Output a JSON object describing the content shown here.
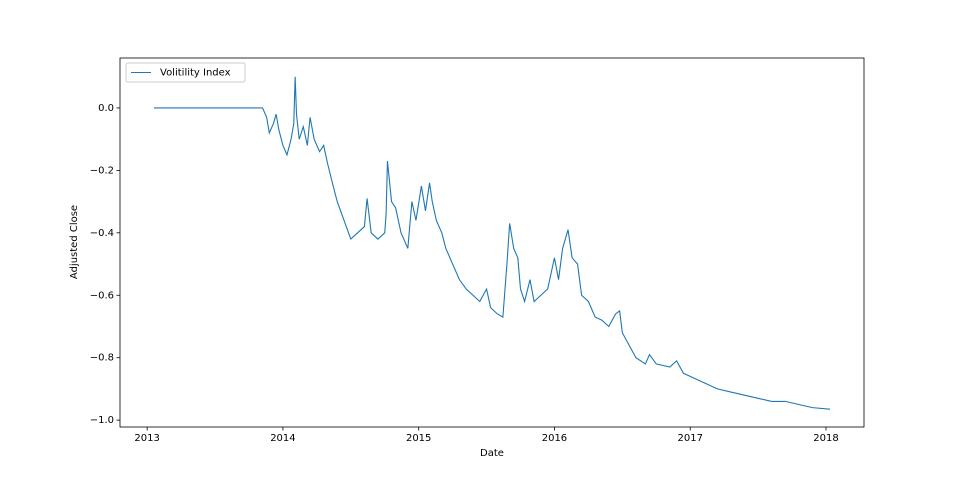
{
  "chart_data": {
    "type": "line",
    "x_label": "Date",
    "y_label": "Adjusted Close",
    "legend": "upper left",
    "x": [
      2013.05,
      2013.85,
      2013.88,
      2013.9,
      2013.93,
      2013.95,
      2013.97,
      2014.0,
      2014.03,
      2014.06,
      2014.08,
      2014.09,
      2014.1,
      2014.12,
      2014.15,
      2014.18,
      2014.2,
      2014.23,
      2014.27,
      2014.3,
      2014.33,
      2014.37,
      2014.4,
      2014.45,
      2014.5,
      2014.55,
      2014.6,
      2014.62,
      2014.65,
      2014.7,
      2014.75,
      2014.76,
      2014.77,
      2014.8,
      2014.83,
      2014.87,
      2014.92,
      2014.95,
      2014.98,
      2015.02,
      2015.05,
      2015.08,
      2015.1,
      2015.13,
      2015.17,
      2015.2,
      2015.25,
      2015.3,
      2015.35,
      2015.4,
      2015.45,
      2015.5,
      2015.53,
      2015.58,
      2015.62,
      2015.65,
      2015.67,
      2015.7,
      2015.73,
      2015.75,
      2015.78,
      2015.82,
      2015.85,
      2015.9,
      2015.95,
      2016.0,
      2016.03,
      2016.06,
      2016.1,
      2016.13,
      2016.17,
      2016.2,
      2016.25,
      2016.3,
      2016.35,
      2016.4,
      2016.45,
      2016.48,
      2016.5,
      2016.55,
      2016.6,
      2016.67,
      2016.7,
      2016.75,
      2016.85,
      2016.9,
      2016.95,
      2017.0,
      2017.1,
      2017.2,
      2017.3,
      2017.4,
      2017.5,
      2017.6,
      2017.7,
      2017.8,
      2017.9,
      2018.03
    ],
    "series": [
      {
        "name": "Volitility Index",
        "color": "#1f77b4",
        "values": [
          0,
          0,
          -0.03,
          -0.08,
          -0.05,
          -0.02,
          -0.07,
          -0.12,
          -0.15,
          -0.1,
          -0.05,
          0.1,
          -0.02,
          -0.1,
          -0.06,
          -0.12,
          -0.03,
          -0.1,
          -0.14,
          -0.12,
          -0.18,
          -0.25,
          -0.3,
          -0.36,
          -0.42,
          -0.4,
          -0.38,
          -0.29,
          -0.4,
          -0.42,
          -0.4,
          -0.34,
          -0.17,
          -0.3,
          -0.32,
          -0.4,
          -0.45,
          -0.3,
          -0.36,
          -0.25,
          -0.33,
          -0.24,
          -0.3,
          -0.36,
          -0.4,
          -0.45,
          -0.5,
          -0.55,
          -0.58,
          -0.6,
          -0.62,
          -0.58,
          -0.64,
          -0.66,
          -0.67,
          -0.5,
          -0.37,
          -0.45,
          -0.48,
          -0.58,
          -0.62,
          -0.55,
          -0.62,
          -0.6,
          -0.58,
          -0.48,
          -0.55,
          -0.45,
          -0.39,
          -0.48,
          -0.5,
          -0.6,
          -0.62,
          -0.67,
          -0.68,
          -0.7,
          -0.66,
          -0.65,
          -0.72,
          -0.76,
          -0.8,
          -0.82,
          -0.79,
          -0.82,
          -0.83,
          -0.81,
          -0.85,
          -0.86,
          -0.88,
          -0.9,
          -0.91,
          -0.92,
          -0.93,
          -0.94,
          -0.94,
          -0.95,
          -0.96,
          -0.965
        ]
      }
    ],
    "xlim": [
      2012.8,
      2018.28
    ],
    "ylim": [
      -1.022,
      0.16
    ],
    "xticks": [
      2013,
      2014,
      2015,
      2016,
      2017,
      2018
    ],
    "yticks": [
      {
        "value": -1.0,
        "label": "−1.0"
      },
      {
        "value": -0.8,
        "label": "−0.8"
      },
      {
        "value": -0.6,
        "label": "−0.6"
      },
      {
        "value": -0.4,
        "label": "−0.4"
      },
      {
        "value": -0.2,
        "label": "−0.2"
      },
      {
        "value": 0.0,
        "label": "0.0"
      }
    ]
  }
}
